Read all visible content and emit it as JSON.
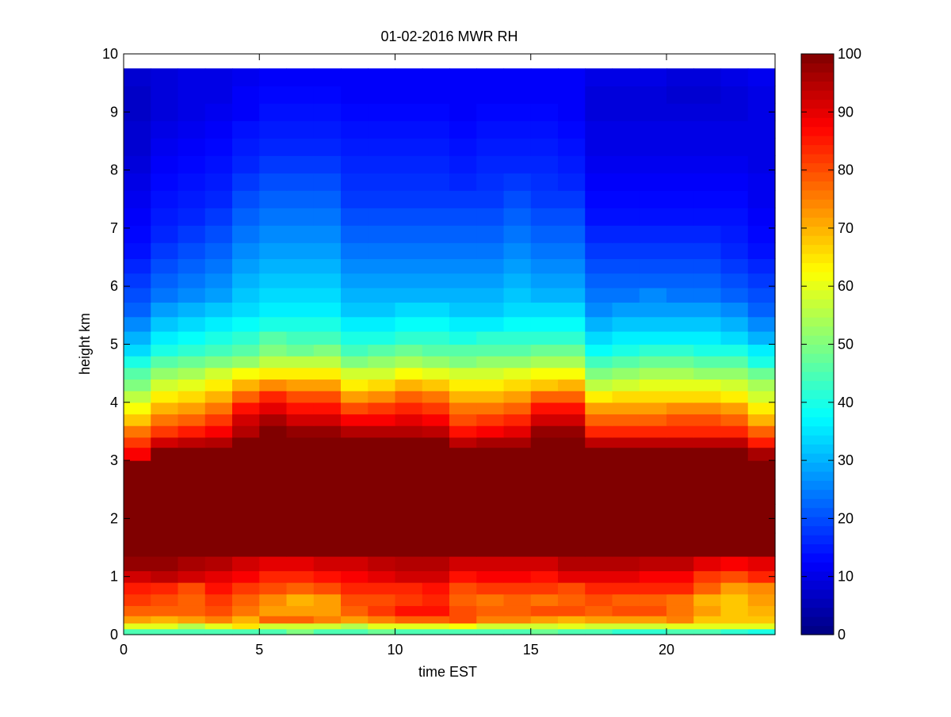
{
  "chart_data": {
    "type": "heatmap",
    "title": "01-02-2016 MWR RH",
    "xlabel": "time EST",
    "ylabel": "height km",
    "xlim": [
      0,
      24
    ],
    "ylim": [
      0,
      10
    ],
    "x_ticks": [
      "0",
      "5",
      "10",
      "15",
      "20"
    ],
    "y_ticks": [
      "0",
      "1",
      "2",
      "3",
      "4",
      "5",
      "6",
      "7",
      "8",
      "9",
      "10"
    ],
    "colorbar": {
      "colormap": "jet",
      "clim": [
        0,
        100
      ],
      "ticks": [
        "0",
        "10",
        "20",
        "30",
        "40",
        "50",
        "60",
        "70",
        "80",
        "90",
        "100"
      ]
    },
    "time_hours": [
      0.5,
      1.5,
      2.5,
      3.5,
      4.5,
      5.5,
      6.5,
      7.5,
      8.5,
      9.5,
      10.5,
      11.5,
      12.5,
      13.5,
      14.5,
      15.5,
      16.5,
      17.5,
      18.5,
      19.5,
      20.5,
      21.5,
      22.5,
      23.5
    ],
    "height_km": [
      0.05,
      0.15,
      0.25,
      0.4,
      0.6,
      0.8,
      1.0,
      1.2,
      1.5,
      2.0,
      2.5,
      2.85,
      3.15,
      3.3,
      3.5,
      3.7,
      3.9,
      4.1,
      4.3,
      4.5,
      4.7,
      4.9,
      5.1,
      5.35,
      5.6,
      5.85,
      6.1,
      6.35,
      6.6,
      6.9,
      7.2,
      7.5,
      7.8,
      8.1,
      8.4,
      8.7,
      9.0,
      9.3,
      9.6
    ],
    "rh_percent": [
      [
        45,
        45,
        45,
        45,
        45,
        45,
        50,
        45,
        45,
        48,
        45,
        45,
        45,
        45,
        45,
        48,
        45,
        45,
        42,
        42,
        45,
        45,
        42,
        40
      ],
      [
        60,
        60,
        55,
        60,
        65,
        58,
        58,
        58,
        55,
        60,
        60,
        60,
        62,
        58,
        58,
        58,
        60,
        58,
        58,
        58,
        60,
        60,
        60,
        60
      ],
      [
        72,
        70,
        72,
        75,
        70,
        78,
        78,
        75,
        72,
        75,
        78,
        78,
        80,
        75,
        75,
        72,
        70,
        72,
        72,
        72,
        75,
        68,
        68,
        68
      ],
      [
        78,
        78,
        78,
        80,
        76,
        72,
        72,
        72,
        78,
        82,
        86,
        86,
        80,
        78,
        78,
        80,
        80,
        78,
        80,
        80,
        76,
        72,
        68,
        70
      ],
      [
        82,
        80,
        78,
        82,
        78,
        74,
        70,
        72,
        80,
        80,
        82,
        84,
        78,
        76,
        78,
        76,
        78,
        80,
        78,
        78,
        76,
        70,
        68,
        72
      ],
      [
        85,
        84,
        80,
        86,
        82,
        80,
        78,
        80,
        84,
        84,
        84,
        86,
        80,
        82,
        82,
        82,
        80,
        84,
        84,
        84,
        84,
        78,
        72,
        74
      ],
      [
        92,
        94,
        92,
        90,
        88,
        84,
        84,
        86,
        88,
        90,
        92,
        92,
        86,
        88,
        88,
        86,
        90,
        90,
        90,
        88,
        88,
        82,
        80,
        84
      ],
      [
        98,
        98,
        96,
        95,
        92,
        90,
        90,
        92,
        92,
        94,
        95,
        95,
        92,
        92,
        92,
        92,
        95,
        95,
        95,
        94,
        94,
        90,
        88,
        90
      ],
      [
        100,
        100,
        100,
        100,
        100,
        100,
        100,
        100,
        100,
        100,
        100,
        100,
        100,
        100,
        100,
        100,
        100,
        100,
        100,
        100,
        100,
        100,
        100,
        100
      ],
      [
        100,
        100,
        100,
        100,
        100,
        100,
        100,
        100,
        100,
        100,
        100,
        100,
        100,
        100,
        100,
        100,
        100,
        100,
        100,
        100,
        100,
        100,
        100,
        100
      ],
      [
        100,
        100,
        100,
        100,
        100,
        100,
        100,
        100,
        100,
        100,
        100,
        100,
        100,
        100,
        100,
        100,
        100,
        100,
        100,
        100,
        100,
        100,
        100,
        100
      ],
      [
        100,
        100,
        100,
        100,
        100,
        100,
        100,
        100,
        100,
        100,
        100,
        100,
        100,
        100,
        100,
        100,
        100,
        100,
        100,
        100,
        100,
        100,
        100,
        100
      ],
      [
        88,
        100,
        100,
        100,
        100,
        100,
        100,
        100,
        100,
        100,
        100,
        100,
        100,
        100,
        100,
        100,
        100,
        100,
        100,
        100,
        100,
        100,
        100,
        96
      ],
      [
        82,
        92,
        94,
        95,
        100,
        100,
        100,
        100,
        100,
        100,
        100,
        100,
        94,
        96,
        96,
        100,
        100,
        94,
        94,
        94,
        94,
        94,
        94,
        85
      ],
      [
        76,
        82,
        85,
        88,
        95,
        100,
        98,
        98,
        95,
        95,
        95,
        94,
        86,
        88,
        90,
        98,
        98,
        84,
        84,
        84,
        84,
        84,
        84,
        78
      ],
      [
        68,
        76,
        78,
        82,
        92,
        96,
        92,
        92,
        88,
        88,
        90,
        88,
        80,
        82,
        84,
        92,
        92,
        78,
        78,
        78,
        80,
        80,
        78,
        70
      ],
      [
        62,
        70,
        72,
        76,
        86,
        90,
        86,
        86,
        80,
        82,
        84,
        82,
        76,
        76,
        78,
        86,
        86,
        72,
        72,
        72,
        74,
        74,
        72,
        64
      ],
      [
        56,
        64,
        66,
        70,
        78,
        84,
        80,
        80,
        72,
        74,
        78,
        76,
        70,
        70,
        72,
        78,
        78,
        64,
        66,
        66,
        66,
        66,
        64,
        58
      ],
      [
        50,
        58,
        60,
        64,
        70,
        74,
        72,
        72,
        64,
        66,
        70,
        68,
        64,
        64,
        66,
        68,
        70,
        56,
        58,
        60,
        60,
        60,
        58,
        54
      ],
      [
        46,
        52,
        54,
        58,
        62,
        64,
        64,
        64,
        58,
        58,
        62,
        60,
        58,
        58,
        60,
        62,
        62,
        50,
        52,
        54,
        54,
        52,
        52,
        48
      ],
      [
        40,
        46,
        48,
        50,
        52,
        56,
        56,
        56,
        50,
        52,
        54,
        52,
        50,
        52,
        52,
        54,
        54,
        44,
        46,
        48,
        48,
        46,
        46,
        40
      ],
      [
        34,
        40,
        42,
        44,
        46,
        50,
        48,
        50,
        44,
        46,
        48,
        46,
        46,
        46,
        46,
        48,
        48,
        38,
        40,
        42,
        42,
        40,
        40,
        36
      ],
      [
        30,
        36,
        38,
        40,
        42,
        46,
        44,
        44,
        40,
        40,
        42,
        42,
        40,
        42,
        42,
        42,
        42,
        34,
        36,
        36,
        36,
        36,
        34,
        30
      ],
      [
        26,
        32,
        34,
        36,
        38,
        40,
        40,
        40,
        36,
        36,
        38,
        38,
        36,
        36,
        38,
        38,
        38,
        30,
        32,
        32,
        32,
        32,
        30,
        26
      ],
      [
        22,
        28,
        30,
        32,
        34,
        36,
        36,
        36,
        32,
        32,
        34,
        34,
        32,
        32,
        34,
        34,
        34,
        26,
        28,
        28,
        28,
        28,
        26,
        22
      ],
      [
        20,
        24,
        26,
        28,
        32,
        34,
        34,
        34,
        30,
        30,
        30,
        30,
        30,
        30,
        32,
        30,
        30,
        24,
        24,
        26,
        24,
        24,
        22,
        20
      ],
      [
        18,
        22,
        24,
        26,
        30,
        32,
        32,
        32,
        28,
        28,
        28,
        28,
        28,
        28,
        30,
        28,
        28,
        22,
        22,
        22,
        22,
        22,
        20,
        18
      ],
      [
        16,
        20,
        22,
        24,
        28,
        30,
        30,
        30,
        26,
        26,
        26,
        26,
        26,
        26,
        28,
        26,
        26,
        20,
        20,
        20,
        20,
        20,
        18,
        16
      ],
      [
        14,
        18,
        20,
        22,
        26,
        28,
        28,
        28,
        24,
        24,
        24,
        24,
        24,
        24,
        26,
        24,
        24,
        18,
        18,
        18,
        18,
        18,
        16,
        14
      ],
      [
        13,
        16,
        18,
        20,
        24,
        26,
        26,
        26,
        22,
        22,
        22,
        22,
        22,
        22,
        24,
        22,
        22,
        16,
        16,
        16,
        16,
        16,
        15,
        13
      ],
      [
        12,
        15,
        16,
        18,
        22,
        24,
        24,
        24,
        20,
        20,
        20,
        20,
        20,
        20,
        22,
        20,
        20,
        14,
        14,
        14,
        14,
        14,
        14,
        12
      ],
      [
        11,
        14,
        15,
        16,
        20,
        22,
        22,
        22,
        18,
        18,
        18,
        18,
        18,
        18,
        20,
        18,
        18,
        13,
        13,
        13,
        13,
        13,
        13,
        11
      ],
      [
        10,
        13,
        14,
        15,
        18,
        20,
        20,
        20,
        17,
        17,
        17,
        17,
        16,
        17,
        18,
        17,
        16,
        12,
        12,
        12,
        12,
        12,
        12,
        11
      ],
      [
        9,
        12,
        13,
        14,
        16,
        18,
        18,
        18,
        16,
        16,
        16,
        16,
        15,
        16,
        16,
        16,
        15,
        11,
        11,
        11,
        11,
        11,
        11,
        10
      ],
      [
        8,
        11,
        12,
        13,
        15,
        16,
        16,
        16,
        15,
        15,
        15,
        15,
        14,
        15,
        15,
        15,
        14,
        10,
        10,
        10,
        10,
        10,
        10,
        10
      ],
      [
        8,
        10,
        11,
        12,
        14,
        15,
        15,
        15,
        14,
        14,
        14,
        14,
        13,
        14,
        14,
        14,
        13,
        10,
        10,
        10,
        10,
        10,
        10,
        10
      ],
      [
        7,
        9,
        10,
        11,
        12,
        14,
        14,
        14,
        13,
        13,
        13,
        13,
        12,
        13,
        13,
        13,
        12,
        9,
        9,
        9,
        9,
        9,
        9,
        10
      ],
      [
        7,
        9,
        10,
        10,
        12,
        13,
        13,
        13,
        12,
        12,
        12,
        12,
        12,
        12,
        12,
        12,
        12,
        9,
        9,
        9,
        8,
        8,
        9,
        10
      ],
      [
        8,
        9,
        10,
        10,
        11,
        12,
        12,
        12,
        12,
        12,
        12,
        12,
        12,
        12,
        12,
        12,
        12,
        10,
        10,
        10,
        9,
        9,
        10,
        11
      ]
    ]
  }
}
